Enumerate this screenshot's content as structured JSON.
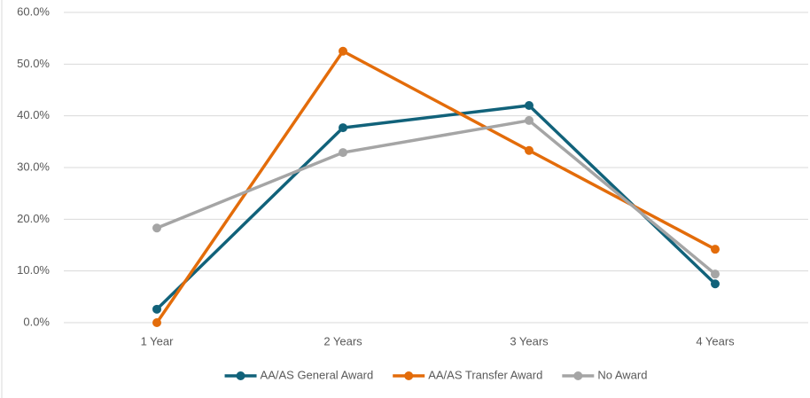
{
  "chart_data": {
    "type": "line",
    "categories": [
      "1 Year",
      "2 Years",
      "3 Years",
      "4 Years"
    ],
    "series": [
      {
        "name": "AA/AS General Award",
        "color": "#11627a",
        "values": [
          2.6,
          37.7,
          42.0,
          7.5
        ]
      },
      {
        "name": "AA/AS Transfer Award",
        "color": "#e36c0a",
        "values": [
          0.0,
          52.5,
          33.3,
          14.2
        ]
      },
      {
        "name": "No Award",
        "color": "#a5a5a5",
        "values": [
          18.3,
          32.9,
          39.1,
          9.4
        ]
      }
    ],
    "ylim": [
      0,
      60
    ],
    "yticks": [
      {
        "value": 0,
        "label": "0.0%"
      },
      {
        "value": 10,
        "label": "10.0%"
      },
      {
        "value": 20,
        "label": "20.0%"
      },
      {
        "value": 30,
        "label": "30.0%"
      },
      {
        "value": 40,
        "label": "40.0%"
      },
      {
        "value": 50,
        "label": "50.0%"
      },
      {
        "value": 60,
        "label": "60.0%"
      }
    ],
    "grid": true,
    "legend": "bottom"
  }
}
